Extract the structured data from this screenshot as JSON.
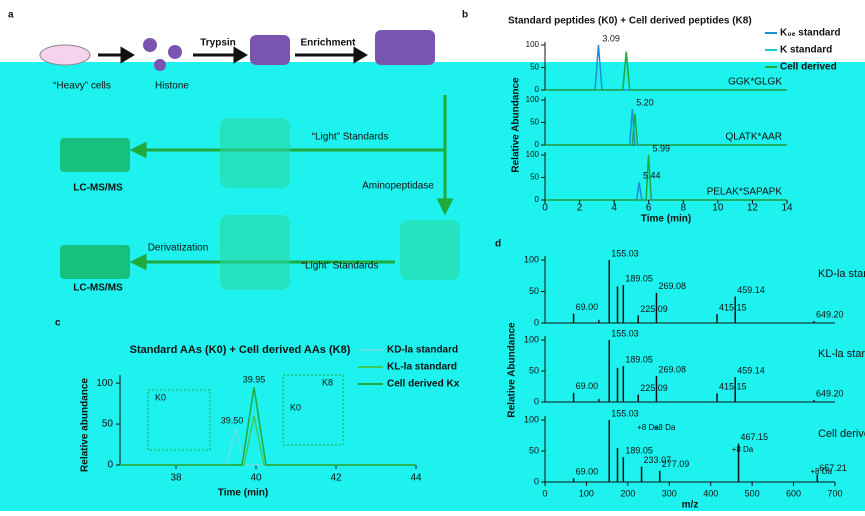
{
  "panel_a": {
    "label": "a",
    "heavy_cells": "“Heavy” cells",
    "histone": "Histone",
    "trypsin": "Trypsin",
    "enrichment": "Enrichment",
    "aminopeptidase": "Aminopeptidase",
    "derivatization": "Derivatization",
    "light_standards_1": "“Light” Standards",
    "light_standards_2": "“Light” Standards",
    "lcms_1": "LC-MS/MS",
    "lcms_2": "LC-MS/MS"
  },
  "panel_b": {
    "label": "b",
    "title": "Standard peptides (K0) + Cell derived peptides (K8)",
    "legend": [
      {
        "name": "K₀ₑ standard",
        "color": "#1a8fd8"
      },
      {
        "name": "K standard",
        "color": "#1ac8d8"
      },
      {
        "name": "Cell derived",
        "color": "#1faa3c"
      }
    ],
    "ylabel": "Relative Abundance",
    "xlabel": "Time (min)",
    "xlim": [
      0,
      14
    ],
    "xticks": [
      0,
      2,
      4,
      6,
      8,
      10,
      12,
      14
    ],
    "ylim": [
      0,
      100
    ],
    "yticks": [
      0,
      50,
      100
    ],
    "rows": [
      {
        "name": "GGK*GLGK",
        "peak_labels": [
          "3.09"
        ],
        "std": {
          "x": [
            0,
            2.9,
            3.09,
            3.3,
            14
          ],
          "values": [
            0,
            0,
            100,
            0,
            0
          ]
        },
        "cell": {
          "x": [
            0,
            4.5,
            4.7,
            4.9,
            14
          ],
          "values": [
            0,
            0,
            85,
            0,
            0
          ]
        }
      },
      {
        "name": "QLATK*AAR",
        "peak_labels": [
          "5.20"
        ],
        "std": {
          "x": [
            0,
            4.9,
            5.05,
            5.2,
            14
          ],
          "values": [
            0,
            0,
            80,
            0,
            0
          ]
        },
        "cell": {
          "x": [
            0,
            5.05,
            5.2,
            5.35,
            14
          ],
          "values": [
            0,
            0,
            70,
            0,
            0
          ]
        }
      },
      {
        "name": "PELAK*SAPAPK",
        "peak_labels": [
          "5.44",
          "5.99"
        ],
        "std": {
          "x": [
            0,
            5.3,
            5.44,
            5.6,
            14
          ],
          "values": [
            0,
            0,
            40,
            0,
            0
          ]
        },
        "cell": {
          "x": [
            0,
            5.85,
            5.99,
            6.15,
            14
          ],
          "values": [
            0,
            0,
            100,
            0,
            0
          ]
        }
      }
    ]
  },
  "panel_c": {
    "label": "c",
    "title": "Standard AAs (K0) + Cell derived AAs (K8)",
    "ylabel": "Relative abundance",
    "xlabel": "Time (min)",
    "xlim": [
      36.6,
      44
    ],
    "xticks": [
      38,
      40,
      42,
      44
    ],
    "ylim": [
      0,
      110
    ],
    "yticks": [
      0,
      50,
      100
    ],
    "peak_labels": [
      "39.50",
      "39.95"
    ],
    "inset_labels": [
      "K0",
      "K0",
      "K8"
    ],
    "series": [
      {
        "name": "KD-la standard",
        "color": "#5fdfe6",
        "x": [
          36.6,
          39.25,
          39.5,
          39.7,
          44
        ],
        "values": [
          0,
          0,
          45,
          0,
          0
        ]
      },
      {
        "name": "KL-la standard",
        "color": "#3ccc5a",
        "x": [
          36.6,
          39.7,
          39.95,
          40.2,
          44
        ],
        "values": [
          0,
          0,
          60,
          0,
          0
        ]
      },
      {
        "name": "Cell derived Kx",
        "color": "#1faa3c",
        "x": [
          36.6,
          39.65,
          39.95,
          40.25,
          44
        ],
        "values": [
          0,
          0,
          95,
          0,
          0
        ]
      }
    ]
  },
  "panel_d": {
    "label": "d",
    "ylabel": "Relative Abundance",
    "xlabel": "m/z",
    "xlim": [
      0,
      700
    ],
    "xticks": [
      0,
      100,
      200,
      300,
      400,
      500,
      600,
      700
    ],
    "ylim": [
      0,
      100
    ],
    "yticks": [
      0,
      50,
      100
    ],
    "annotations": [
      "+8 Da",
      "+8 Da",
      "+8 Da",
      "+8 Da"
    ],
    "spectra": [
      {
        "name": "KD-la standard",
        "mz": [
          69.0,
          130,
          155.03,
          175,
          189.05,
          225.09,
          269.08,
          415.15,
          459.14,
          649.2
        ],
        "values": [
          15,
          5,
          100,
          58,
          60,
          12,
          48,
          14,
          42,
          3
        ],
        "mz_labels": [
          "69.00",
          null,
          "155.03",
          null,
          "189.05",
          "225.09",
          "269.08",
          "415.15",
          "459.14",
          "649.20"
        ]
      },
      {
        "name": "KL-la standard",
        "mz": [
          69.0,
          130,
          155.03,
          175,
          189.05,
          225.09,
          269.08,
          415.15,
          459.14,
          649.2
        ],
        "values": [
          15,
          5,
          100,
          55,
          58,
          12,
          42,
          14,
          40,
          3
        ],
        "mz_labels": [
          "69.00",
          null,
          "155.03",
          null,
          "189.05",
          "225.09",
          "269.08",
          "415.15",
          "459.14",
          "649.20"
        ]
      },
      {
        "name": "Cell derived",
        "mz": [
          69.0,
          155.03,
          175,
          189.05,
          233.07,
          277.09,
          467.15,
          657.21
        ],
        "values": [
          6,
          100,
          55,
          40,
          25,
          18,
          62,
          12
        ],
        "mz_labels": [
          "69.00",
          "155.03",
          null,
          "189.05",
          "233.07",
          "277.09",
          "467.15",
          "657.21"
        ]
      }
    ]
  }
}
